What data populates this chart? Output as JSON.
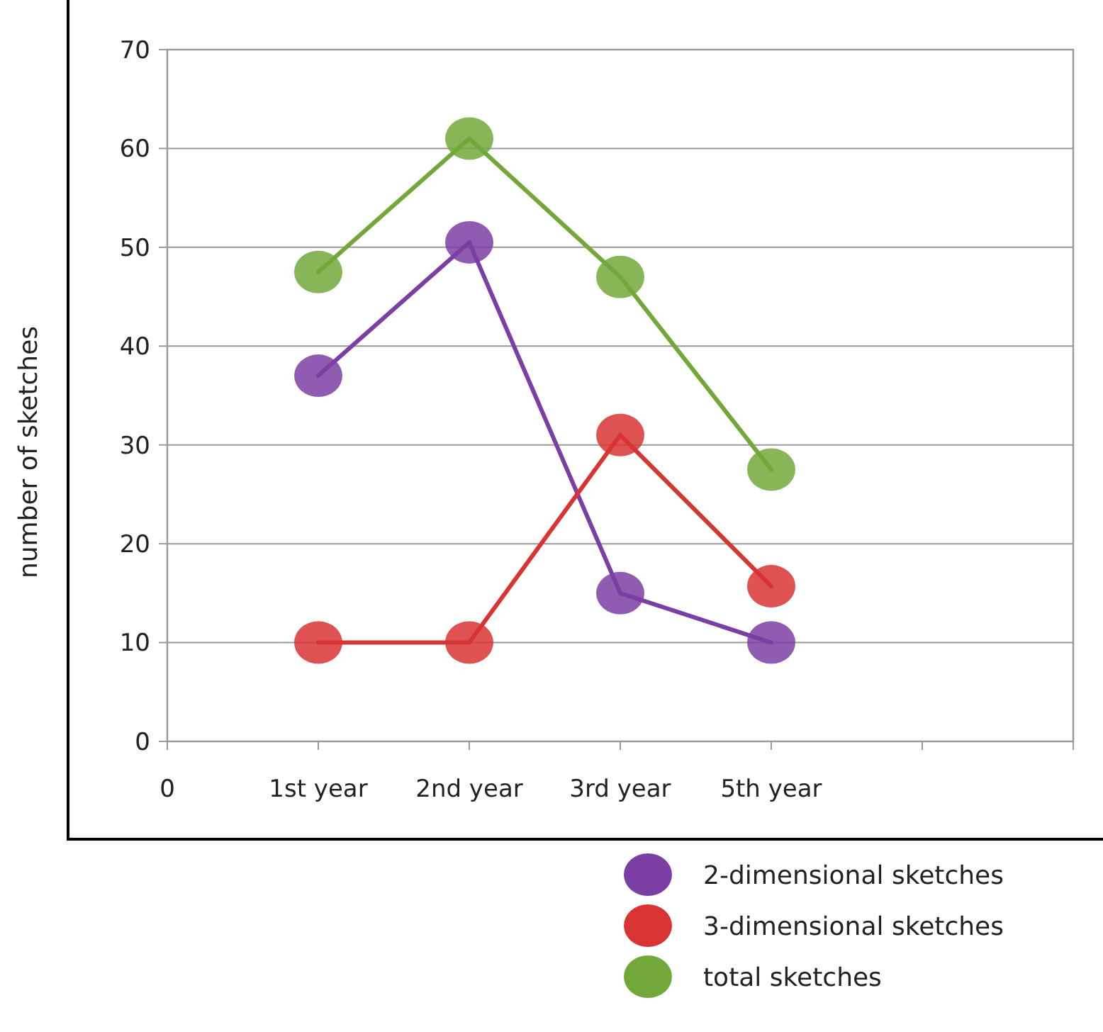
{
  "chart_data": {
    "type": "line",
    "ylabel": "number of sketches",
    "categories": [
      "1st year",
      "2nd year",
      "3rd year",
      "5th year",
      null,
      null
    ],
    "annotations": [
      "0"
    ],
    "ylim": [
      0,
      70
    ],
    "yticks": [
      0,
      10,
      20,
      30,
      40,
      50,
      60,
      70
    ],
    "grid": "y",
    "marker": "circle",
    "line_style": "solid",
    "legend": "bottom right",
    "series": [
      {
        "name": "2-dimensional sketches",
        "color": "#7b3fa3",
        "values": [
          37,
          50.5,
          15,
          10,
          null,
          null
        ]
      },
      {
        "name": "3-dimensional sketches",
        "color": "#d93434",
        "values": [
          10,
          10,
          31,
          15.7,
          null,
          null
        ]
      },
      {
        "name": "total sketches",
        "color": "#72a83a",
        "values": [
          47.5,
          61,
          47,
          27.5,
          null,
          null
        ]
      }
    ]
  }
}
